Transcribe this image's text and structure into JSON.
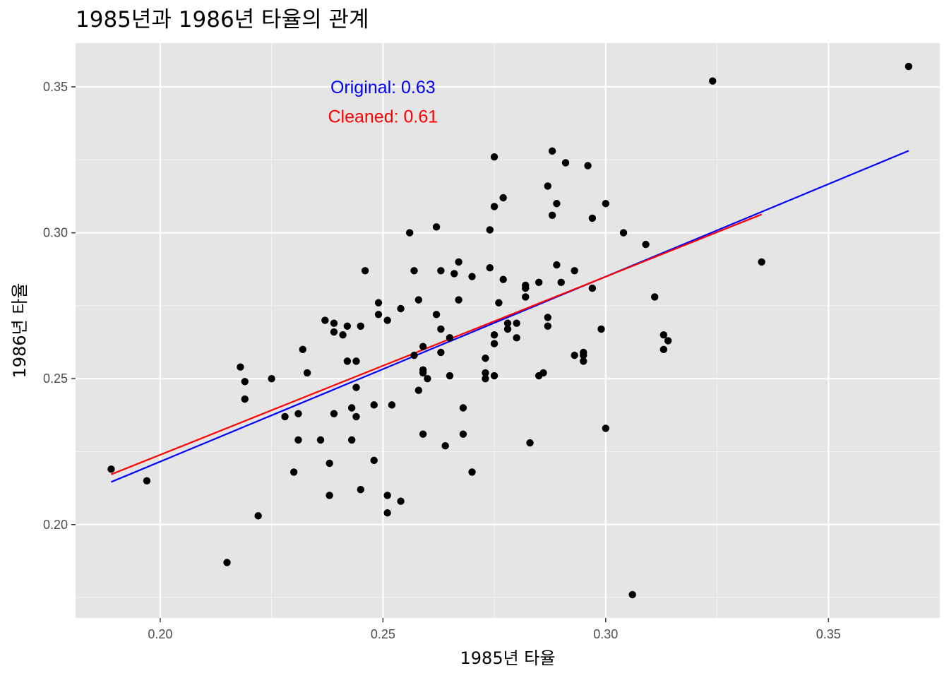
{
  "chart_data": {
    "type": "scatter",
    "title": "1985년과 1986년 타율의 관계",
    "xlabel": "1985년 타율",
    "ylabel": "1986년 타율",
    "xlim": [
      0.181,
      0.375
    ],
    "ylim": [
      0.168,
      0.365
    ],
    "x_ticks": [
      0.2,
      0.25,
      0.3,
      0.35
    ],
    "x_tick_labels": [
      "0.20",
      "0.25",
      "0.30",
      "0.35"
    ],
    "y_ticks": [
      0.2,
      0.25,
      0.3,
      0.35
    ],
    "y_tick_labels": [
      "0.20",
      "0.25",
      "0.30",
      "0.35"
    ],
    "grid": true,
    "point_color": "#000000",
    "points": [
      [
        0.189,
        0.219
      ],
      [
        0.197,
        0.215
      ],
      [
        0.215,
        0.187
      ],
      [
        0.218,
        0.254
      ],
      [
        0.219,
        0.249
      ],
      [
        0.219,
        0.243
      ],
      [
        0.222,
        0.203
      ],
      [
        0.225,
        0.25
      ],
      [
        0.228,
        0.237
      ],
      [
        0.23,
        0.218
      ],
      [
        0.231,
        0.238
      ],
      [
        0.231,
        0.229
      ],
      [
        0.232,
        0.26
      ],
      [
        0.233,
        0.252
      ],
      [
        0.236,
        0.229
      ],
      [
        0.237,
        0.27
      ],
      [
        0.238,
        0.221
      ],
      [
        0.238,
        0.21
      ],
      [
        0.239,
        0.269
      ],
      [
        0.239,
        0.266
      ],
      [
        0.239,
        0.238
      ],
      [
        0.241,
        0.265
      ],
      [
        0.242,
        0.268
      ],
      [
        0.242,
        0.256
      ],
      [
        0.243,
        0.24
      ],
      [
        0.243,
        0.229
      ],
      [
        0.244,
        0.256
      ],
      [
        0.244,
        0.247
      ],
      [
        0.244,
        0.237
      ],
      [
        0.245,
        0.268
      ],
      [
        0.245,
        0.212
      ],
      [
        0.246,
        0.287
      ],
      [
        0.248,
        0.241
      ],
      [
        0.248,
        0.222
      ],
      [
        0.249,
        0.276
      ],
      [
        0.249,
        0.272
      ],
      [
        0.251,
        0.27
      ],
      [
        0.251,
        0.21
      ],
      [
        0.251,
        0.204
      ],
      [
        0.252,
        0.241
      ],
      [
        0.254,
        0.274
      ],
      [
        0.254,
        0.208
      ],
      [
        0.256,
        0.3
      ],
      [
        0.257,
        0.287
      ],
      [
        0.257,
        0.258
      ],
      [
        0.258,
        0.277
      ],
      [
        0.258,
        0.246
      ],
      [
        0.259,
        0.261
      ],
      [
        0.259,
        0.253
      ],
      [
        0.259,
        0.252
      ],
      [
        0.259,
        0.231
      ],
      [
        0.26,
        0.25
      ],
      [
        0.262,
        0.302
      ],
      [
        0.262,
        0.272
      ],
      [
        0.263,
        0.287
      ],
      [
        0.263,
        0.267
      ],
      [
        0.263,
        0.259
      ],
      [
        0.264,
        0.227
      ],
      [
        0.265,
        0.264
      ],
      [
        0.265,
        0.251
      ],
      [
        0.266,
        0.286
      ],
      [
        0.267,
        0.29
      ],
      [
        0.267,
        0.277
      ],
      [
        0.268,
        0.24
      ],
      [
        0.268,
        0.231
      ],
      [
        0.27,
        0.285
      ],
      [
        0.27,
        0.218
      ],
      [
        0.273,
        0.257
      ],
      [
        0.273,
        0.252
      ],
      [
        0.273,
        0.25
      ],
      [
        0.274,
        0.301
      ],
      [
        0.274,
        0.288
      ],
      [
        0.275,
        0.326
      ],
      [
        0.275,
        0.309
      ],
      [
        0.275,
        0.265
      ],
      [
        0.275,
        0.262
      ],
      [
        0.275,
        0.251
      ],
      [
        0.276,
        0.276
      ],
      [
        0.277,
        0.312
      ],
      [
        0.277,
        0.284
      ],
      [
        0.278,
        0.269
      ],
      [
        0.278,
        0.267
      ],
      [
        0.28,
        0.269
      ],
      [
        0.28,
        0.264
      ],
      [
        0.282,
        0.282
      ],
      [
        0.282,
        0.281
      ],
      [
        0.282,
        0.278
      ],
      [
        0.283,
        0.228
      ],
      [
        0.285,
        0.283
      ],
      [
        0.285,
        0.251
      ],
      [
        0.286,
        0.252
      ],
      [
        0.287,
        0.316
      ],
      [
        0.287,
        0.271
      ],
      [
        0.287,
        0.268
      ],
      [
        0.288,
        0.328
      ],
      [
        0.288,
        0.306
      ],
      [
        0.289,
        0.31
      ],
      [
        0.289,
        0.289
      ],
      [
        0.29,
        0.283
      ],
      [
        0.291,
        0.324
      ],
      [
        0.293,
        0.287
      ],
      [
        0.293,
        0.258
      ],
      [
        0.295,
        0.259
      ],
      [
        0.295,
        0.258
      ],
      [
        0.295,
        0.256
      ],
      [
        0.296,
        0.323
      ],
      [
        0.297,
        0.305
      ],
      [
        0.297,
        0.281
      ],
      [
        0.299,
        0.267
      ],
      [
        0.3,
        0.31
      ],
      [
        0.3,
        0.233
      ],
      [
        0.304,
        0.3
      ],
      [
        0.306,
        0.176
      ],
      [
        0.309,
        0.296
      ],
      [
        0.311,
        0.278
      ],
      [
        0.313,
        0.265
      ],
      [
        0.313,
        0.26
      ],
      [
        0.314,
        0.263
      ],
      [
        0.324,
        0.352
      ],
      [
        0.335,
        0.29
      ],
      [
        0.368,
        0.357
      ]
    ],
    "lines": [
      {
        "color": "#0000ff",
        "x": [
          0.189,
          0.368
        ],
        "y": [
          0.2146,
          0.3281
        ]
      },
      {
        "color": "#ff0000",
        "x": [
          0.189,
          0.335
        ],
        "y": [
          0.2172,
          0.3063
        ]
      }
    ],
    "annotations": [
      {
        "text": "Original:  0.63",
        "color": "#0000ff",
        "x": 0.25,
        "y": 0.35
      },
      {
        "text": "Cleaned:  0.61",
        "color": "#ff0000",
        "x": 0.25,
        "y": 0.34
      }
    ]
  }
}
